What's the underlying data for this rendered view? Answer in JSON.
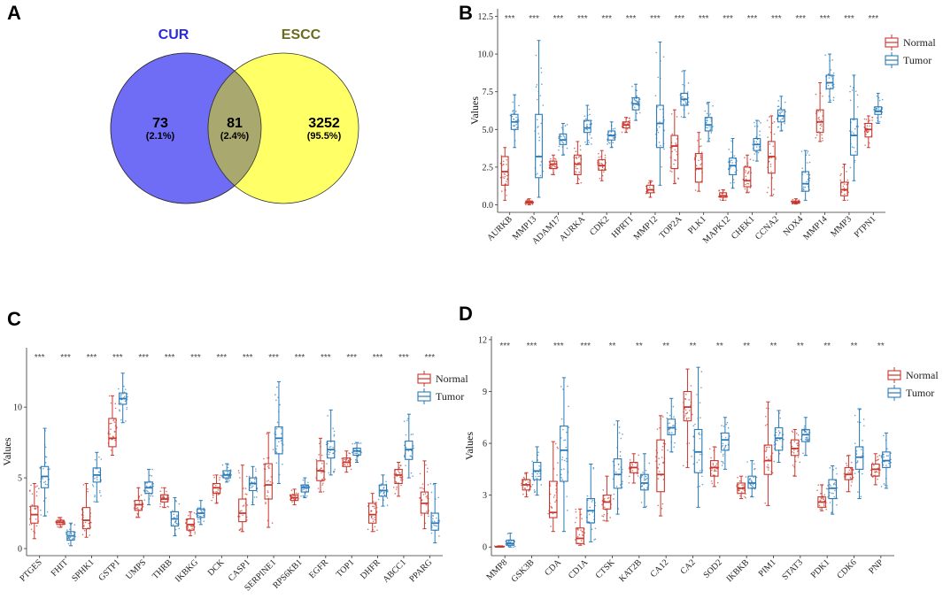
{
  "colors": {
    "cur": "#6f6cf5",
    "escc": "#ffff66",
    "overlap": "#a9a86f",
    "cur_label": "#2a2ae0",
    "escc_label": "#6b6b1e",
    "normal": "#c8372d",
    "tumor": "#2a7ab8"
  },
  "panels": {
    "A": "A",
    "B": "B",
    "C": "C",
    "D": "D"
  },
  "venn": {
    "left_label": "CUR",
    "right_label": "ESCC",
    "left_count": "73",
    "left_pct": "(2.1%)",
    "overlap_count": "81",
    "overlap_pct": "(2.4%)",
    "right_count": "3252",
    "right_pct": "(95.5%)"
  },
  "chart_data": [
    {
      "panel": "B",
      "type": "box",
      "ylabel": "Values",
      "yticks": [
        0.0,
        2.5,
        5.0,
        7.5,
        10.0,
        12.5
      ],
      "ytick_labels": [
        "0.0",
        "2.5",
        "5.0",
        "7.5",
        "10.0",
        "12.5"
      ],
      "ylim": [
        -0.5,
        13.0
      ],
      "legend": [
        "Normal",
        "Tumor"
      ],
      "categories": [
        "AURKB",
        "MMP13",
        "ADAM17",
        "AURKA",
        "CDK2",
        "HPRT1",
        "MMP12",
        "TOP2A",
        "PLK1",
        "MAPK12",
        "CHEK1",
        "CCNA2",
        "NOX4",
        "MMP14",
        "MMP3",
        "PTPN1"
      ],
      "significance": [
        "***",
        "***",
        "***",
        "***",
        "***",
        "***",
        "***",
        "***",
        "***",
        "***",
        "***",
        "***",
        "***",
        "***",
        "***",
        "***"
      ],
      "series": [
        {
          "name": "Normal",
          "boxes": [
            [
              0.3,
              1.3,
              2.2,
              3.2,
              3.8
            ],
            [
              0.0,
              0.1,
              0.15,
              0.25,
              0.4
            ],
            [
              2.0,
              2.4,
              2.7,
              2.9,
              3.3
            ],
            [
              1.4,
              2.0,
              2.7,
              3.3,
              4.2
            ],
            [
              1.6,
              2.3,
              2.6,
              3.0,
              3.6
            ],
            [
              4.8,
              5.1,
              5.3,
              5.5,
              5.8
            ],
            [
              0.5,
              0.8,
              1.0,
              1.3,
              1.6
            ],
            [
              1.4,
              2.4,
              3.9,
              4.6,
              6.3
            ],
            [
              0.9,
              1.5,
              2.4,
              3.4,
              4.8
            ],
            [
              0.3,
              0.5,
              0.6,
              0.8,
              1.0
            ],
            [
              0.8,
              1.2,
              1.6,
              2.5,
              3.3
            ],
            [
              0.6,
              2.1,
              3.2,
              4.2,
              5.9
            ],
            [
              0.05,
              0.1,
              0.15,
              0.25,
              0.4
            ],
            [
              4.2,
              4.8,
              5.5,
              6.3,
              8.1
            ],
            [
              0.3,
              0.6,
              1.0,
              1.5,
              2.7
            ],
            [
              3.8,
              4.5,
              5.0,
              5.4,
              5.9
            ]
          ]
        },
        {
          "name": "Tumor",
          "boxes": [
            [
              3.8,
              5.0,
              5.5,
              6.0,
              7.3
            ],
            [
              0.5,
              1.8,
              3.2,
              6.0,
              10.9
            ],
            [
              3.3,
              4.0,
              4.3,
              4.7,
              5.4
            ],
            [
              4.0,
              4.8,
              5.1,
              5.6,
              6.6
            ],
            [
              3.8,
              4.3,
              4.6,
              4.9,
              5.5
            ],
            [
              5.6,
              6.3,
              6.7,
              7.1,
              8.0
            ],
            [
              1.3,
              3.8,
              5.4,
              6.6,
              10.8
            ],
            [
              5.8,
              6.6,
              7.0,
              7.4,
              8.9
            ],
            [
              4.2,
              4.9,
              5.3,
              5.8,
              6.8
            ],
            [
              1.1,
              2.0,
              2.6,
              3.1,
              4.4
            ],
            [
              2.9,
              3.6,
              4.0,
              4.4,
              5.6
            ],
            [
              4.9,
              5.5,
              5.9,
              6.3,
              7.2
            ],
            [
              0.3,
              0.9,
              1.4,
              2.2,
              3.6
            ],
            [
              6.8,
              7.7,
              8.1,
              8.6,
              10.0
            ],
            [
              1.6,
              3.3,
              4.6,
              5.7,
              8.6
            ],
            [
              5.4,
              6.0,
              6.2,
              6.5,
              7.4
            ]
          ]
        }
      ]
    },
    {
      "panel": "C",
      "type": "box",
      "ylabel": "Values",
      "yticks": [
        0,
        5,
        10
      ],
      "ytick_labels": [
        "0",
        "5",
        "10"
      ],
      "ylim": [
        -0.5,
        14.2
      ],
      "legend": [
        "Normal",
        "Tumor"
      ],
      "categories": [
        "PTGES",
        "FHIT",
        "SPHK1",
        "GSTP1",
        "UMPS",
        "THRB",
        "IKBKG",
        "DCK",
        "CASP1",
        "SERPINE1",
        "RPS6KB1",
        "EGFR",
        "TOP1",
        "DHFR",
        "ABCC1",
        "PPARG"
      ],
      "significance": [
        "***",
        "***",
        "***",
        "***",
        "***",
        "***",
        "***",
        "***",
        "***",
        "***",
        "***",
        "***",
        "***",
        "***",
        "***",
        "***"
      ],
      "series": [
        {
          "name": "Normal",
          "boxes": [
            [
              0.7,
              1.8,
              2.4,
              3.0,
              4.6
            ],
            [
              1.5,
              1.7,
              1.85,
              2.0,
              2.2
            ],
            [
              0.8,
              1.4,
              2.0,
              2.9,
              4.6
            ],
            [
              6.6,
              7.2,
              7.8,
              9.2,
              10.8
            ],
            [
              2.2,
              2.7,
              3.1,
              3.4,
              4.3
            ],
            [
              2.9,
              3.3,
              3.5,
              3.8,
              4.3
            ],
            [
              0.9,
              1.3,
              1.7,
              2.1,
              2.6
            ],
            [
              3.2,
              3.9,
              4.3,
              4.6,
              5.2
            ],
            [
              1.2,
              1.9,
              2.5,
              3.5,
              5.9
            ],
            [
              1.5,
              3.5,
              4.5,
              6.0,
              8.2
            ],
            [
              3.1,
              3.4,
              3.6,
              3.8,
              4.2
            ],
            [
              4.0,
              4.8,
              5.5,
              6.2,
              7.8
            ],
            [
              5.4,
              5.8,
              6.1,
              6.4,
              6.9
            ],
            [
              1.2,
              1.8,
              2.4,
              3.2,
              3.9
            ],
            [
              3.7,
              4.6,
              5.2,
              5.6,
              6.1
            ],
            [
              1.4,
              2.5,
              3.2,
              4.0,
              6.2
            ]
          ]
        },
        {
          "name": "Tumor",
          "boxes": [
            [
              2.3,
              4.3,
              5.1,
              5.8,
              8.5
            ],
            [
              0.2,
              0.6,
              0.9,
              1.2,
              1.8
            ],
            [
              3.3,
              4.7,
              5.2,
              5.7,
              6.8
            ],
            [
              8.9,
              10.2,
              10.6,
              11.0,
              12.4
            ],
            [
              3.1,
              3.9,
              4.3,
              4.7,
              5.6
            ],
            [
              0.9,
              1.6,
              2.1,
              2.6,
              3.6
            ],
            [
              1.7,
              2.2,
              2.5,
              2.8,
              3.4
            ],
            [
              4.7,
              5.0,
              5.2,
              5.5,
              6.0
            ],
            [
              3.1,
              4.1,
              4.6,
              5.0,
              5.8
            ],
            [
              4.6,
              6.7,
              7.8,
              8.6,
              11.8
            ],
            [
              3.6,
              4.0,
              4.3,
              4.5,
              5.0
            ],
            [
              5.2,
              6.4,
              7.0,
              7.6,
              9.8
            ],
            [
              6.1,
              6.6,
              6.9,
              7.1,
              7.5
            ],
            [
              3.0,
              3.7,
              4.1,
              4.5,
              5.2
            ],
            [
              5.0,
              6.3,
              7.0,
              7.6,
              9.5
            ],
            [
              0.4,
              1.3,
              1.8,
              2.5,
              4.6
            ]
          ]
        }
      ]
    },
    {
      "panel": "D",
      "type": "box",
      "ylabel": "Values",
      "yticks": [
        0,
        3,
        6,
        9,
        12
      ],
      "ytick_labels": [
        "0",
        "3",
        "6",
        "9",
        "12"
      ],
      "ylim": [
        -0.5,
        12.2
      ],
      "legend": [
        "Normal",
        "Tumor"
      ],
      "categories": [
        "MMP8",
        "GSK3B",
        "CDA",
        "CD1A",
        "CTSK",
        "KAT2B",
        "CA12",
        "CA2",
        "SOD2",
        "IKBKB",
        "PIM1",
        "STAT3",
        "PDK1",
        "CDK6",
        "PNP"
      ],
      "significance": [
        "***",
        "***",
        "***",
        "***",
        "**",
        "**",
        "**",
        "**",
        "**",
        "**",
        "**",
        "**",
        "**",
        "**",
        "**"
      ],
      "series": [
        {
          "name": "Normal",
          "boxes": [
            [
              0.0,
              0.0,
              0.02,
              0.04,
              0.07
            ],
            [
              2.9,
              3.3,
              3.6,
              3.9,
              4.3
            ],
            [
              0.9,
              1.7,
              2.0,
              3.8,
              6.1
            ],
            [
              0.1,
              0.2,
              0.5,
              1.1,
              2.2
            ],
            [
              1.5,
              2.2,
              2.6,
              3.0,
              4.1
            ],
            [
              3.7,
              4.3,
              4.6,
              4.9,
              5.4
            ],
            [
              1.8,
              3.2,
              4.2,
              6.2,
              7.6
            ],
            [
              4.6,
              7.3,
              8.1,
              9.0,
              10.3
            ],
            [
              3.5,
              4.1,
              4.6,
              5.0,
              5.8
            ],
            [
              2.8,
              3.1,
              3.4,
              3.7,
              4.1
            ],
            [
              2.4,
              4.2,
              5.0,
              5.9,
              8.4
            ],
            [
              4.1,
              5.3,
              5.7,
              6.2,
              6.8
            ],
            [
              2.1,
              2.3,
              2.6,
              2.9,
              3.6
            ],
            [
              3.2,
              3.9,
              4.2,
              4.6,
              5.3
            ],
            [
              3.6,
              4.1,
              4.5,
              4.8,
              5.4
            ]
          ]
        },
        {
          "name": "Tumor",
          "boxes": [
            [
              0.0,
              0.1,
              0.2,
              0.4,
              0.8
            ],
            [
              3.0,
              3.9,
              4.4,
              4.9,
              5.8
            ],
            [
              0.9,
              3.8,
              5.6,
              7.0,
              9.8
            ],
            [
              0.3,
              1.4,
              2.1,
              2.8,
              4.8
            ],
            [
              1.9,
              3.4,
              4.2,
              5.1,
              7.3
            ],
            [
              2.3,
              3.3,
              3.7,
              4.2,
              5.4
            ],
            [
              5.5,
              6.5,
              6.9,
              7.4,
              8.6
            ],
            [
              2.3,
              4.3,
              5.5,
              6.8,
              10.4
            ],
            [
              4.5,
              5.6,
              6.2,
              6.6,
              7.5
            ],
            [
              2.9,
              3.4,
              3.7,
              4.1,
              5.0
            ],
            [
              4.9,
              5.6,
              6.3,
              6.9,
              7.9
            ],
            [
              5.3,
              6.1,
              6.5,
              6.8,
              7.5
            ],
            [
              1.9,
              2.8,
              3.4,
              3.9,
              4.7
            ],
            [
              2.8,
              4.5,
              5.2,
              5.8,
              8.0
            ],
            [
              3.4,
              4.6,
              5.0,
              5.5,
              6.6
            ]
          ]
        }
      ]
    }
  ]
}
